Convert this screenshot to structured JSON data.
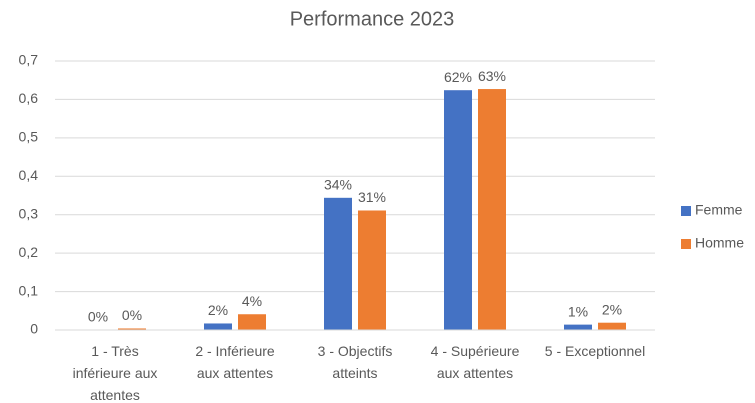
{
  "chart_data": {
    "type": "bar",
    "title": "Performance 2023",
    "categories": [
      "1 - Très inférieure aux attentes",
      "2 - Inférieure aux attentes",
      "3 - Objectifs atteints",
      "4 - Supérieure aux attentes",
      "5 - Exceptionnel"
    ],
    "series": [
      {
        "name": "Femme",
        "color": "#4472c4",
        "values": [
          0.001,
          0.017,
          0.344,
          0.624,
          0.014
        ],
        "value_labels": [
          "0%",
          "2%",
          "34%",
          "62%",
          "1%"
        ]
      },
      {
        "name": "Homme",
        "color": "#ed7d31",
        "values": [
          0.004,
          0.041,
          0.311,
          0.627,
          0.019
        ],
        "value_labels": [
          "0%",
          "4%",
          "31%",
          "63%",
          "2%"
        ]
      }
    ],
    "ylim": [
      0,
      0.7
    ],
    "yticks": [
      0,
      {
        "value": 0.1,
        "label": "0,1"
      },
      {
        "value": 0.2,
        "label": "0,2"
      },
      {
        "value": 0.3,
        "label": "0,3"
      },
      {
        "value": 0.4,
        "label": "0,4"
      },
      {
        "value": 0.5,
        "label": "0,5"
      },
      {
        "value": 0.6,
        "label": "0,6"
      },
      {
        "value": 0.7,
        "label": "0,7"
      }
    ],
    "grid": true,
    "legend": "right"
  }
}
